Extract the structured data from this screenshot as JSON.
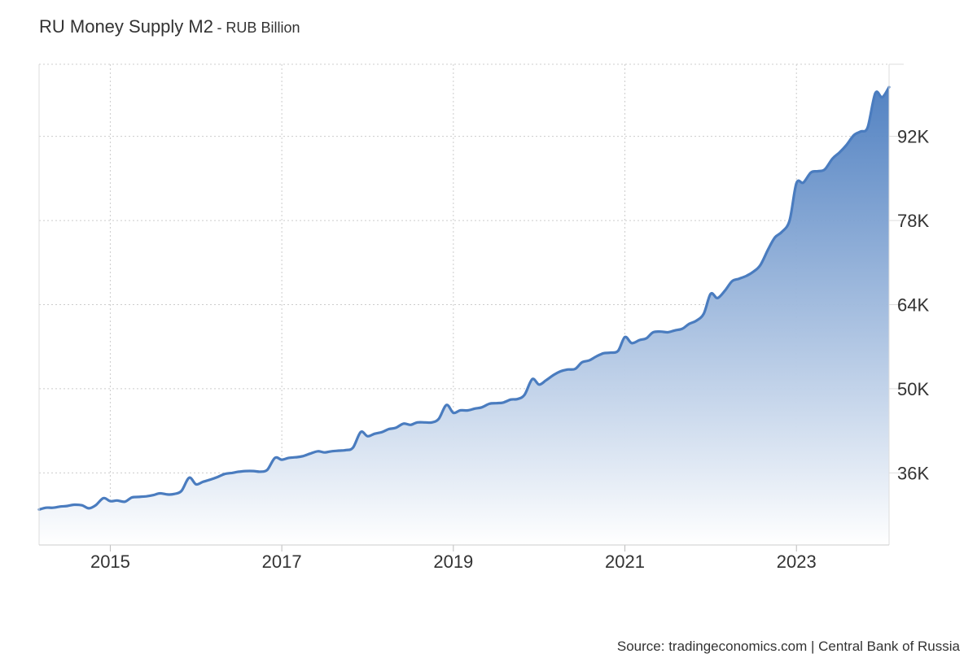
{
  "title": "RU Money Supply M2",
  "subtitle": "- RUB Billion",
  "source": "Source: tradingeconomics.com | Central Bank of Russia",
  "colors": {
    "line": "#4a7cbf",
    "fill_top": "#4a7cbf",
    "fill_bottom": "#ffffff",
    "grid": "#cccccc",
    "axis": "#dddddd"
  },
  "chart_data": {
    "type": "area",
    "title": "RU Money Supply M2",
    "ylabel": "",
    "xlabel": "",
    "xlim": [
      2014.17,
      2024.08
    ],
    "ylim": [
      24000,
      104000
    ],
    "yticks": [
      36000,
      50000,
      64000,
      78000,
      92000
    ],
    "ytick_labels": [
      "36K",
      "50K",
      "64K",
      "78K",
      "92K"
    ],
    "xticks": [
      2015,
      2017,
      2019,
      2021,
      2023
    ],
    "xtick_labels": [
      "2015",
      "2017",
      "2019",
      "2021",
      "2023"
    ],
    "grid": true,
    "x": [
      2014.17,
      2014.25,
      2014.33,
      2014.42,
      2014.5,
      2014.58,
      2014.67,
      2014.75,
      2014.83,
      2014.92,
      2015.0,
      2015.08,
      2015.17,
      2015.25,
      2015.33,
      2015.42,
      2015.5,
      2015.58,
      2015.67,
      2015.75,
      2015.83,
      2015.92,
      2016.0,
      2016.08,
      2016.17,
      2016.25,
      2016.33,
      2016.42,
      2016.5,
      2016.58,
      2016.67,
      2016.75,
      2016.83,
      2016.92,
      2017.0,
      2017.08,
      2017.17,
      2017.25,
      2017.33,
      2017.42,
      2017.5,
      2017.58,
      2017.67,
      2017.75,
      2017.83,
      2017.92,
      2018.0,
      2018.08,
      2018.17,
      2018.25,
      2018.33,
      2018.42,
      2018.5,
      2018.58,
      2018.67,
      2018.75,
      2018.83,
      2018.92,
      2019.0,
      2019.08,
      2019.17,
      2019.25,
      2019.33,
      2019.42,
      2019.5,
      2019.58,
      2019.67,
      2019.75,
      2019.83,
      2019.92,
      2020.0,
      2020.08,
      2020.17,
      2020.25,
      2020.33,
      2020.42,
      2020.5,
      2020.58,
      2020.67,
      2020.75,
      2020.83,
      2020.92,
      2021.0,
      2021.08,
      2021.17,
      2021.25,
      2021.33,
      2021.42,
      2021.5,
      2021.58,
      2021.67,
      2021.75,
      2021.83,
      2021.92,
      2022.0,
      2022.08,
      2022.17,
      2022.25,
      2022.33,
      2022.42,
      2022.5,
      2022.58,
      2022.67,
      2022.75,
      2022.83,
      2022.92,
      2023.0,
      2023.08,
      2023.17,
      2023.25,
      2023.33,
      2023.42,
      2023.5,
      2023.58,
      2023.67,
      2023.75,
      2023.83,
      2023.92,
      2024.0,
      2024.08
    ],
    "series": [
      {
        "values": [
          29900,
          30200,
          30200,
          30400,
          30500,
          30700,
          30600,
          30100,
          30600,
          31800,
          31300,
          31400,
          31200,
          31900,
          32000,
          32100,
          32300,
          32600,
          32400,
          32500,
          33000,
          35200,
          34100,
          34500,
          34900,
          35300,
          35800,
          36000,
          36200,
          36300,
          36300,
          36200,
          36500,
          38500,
          38200,
          38500,
          38600,
          38800,
          39200,
          39600,
          39400,
          39600,
          39700,
          39800,
          40200,
          42800,
          42100,
          42500,
          42800,
          43300,
          43500,
          44200,
          44000,
          44400,
          44400,
          44400,
          45000,
          47300,
          46000,
          46400,
          46400,
          46700,
          46900,
          47500,
          47600,
          47700,
          48200,
          48300,
          49000,
          51600,
          50700,
          51400,
          52300,
          52900,
          53200,
          53300,
          54400,
          54700,
          55400,
          55900,
          56000,
          56300,
          58600,
          57600,
          58100,
          58400,
          59400,
          59500,
          59400,
          59700,
          60000,
          60800,
          61300,
          62500,
          65800,
          65100,
          66400,
          67900,
          68300,
          68800,
          69500,
          70600,
          73200,
          75200,
          76100,
          78000,
          84200,
          84300,
          86000,
          86200,
          86500,
          88300,
          89300,
          90500,
          92200,
          92800,
          93500,
          99200,
          98500,
          100200
        ]
      }
    ]
  }
}
